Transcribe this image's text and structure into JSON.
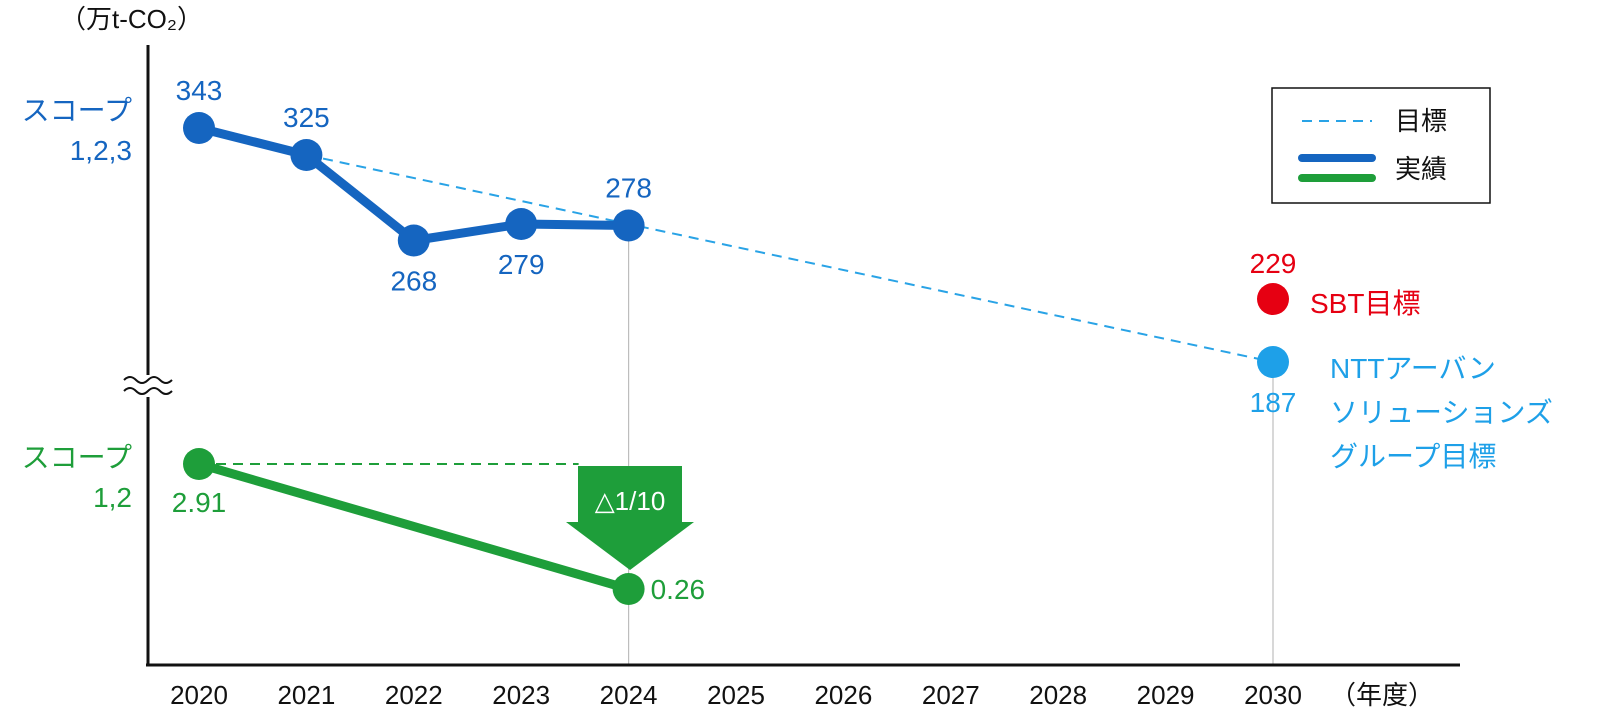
{
  "chart_data": {
    "type": "line",
    "unit_label": "（万t-CO₂）",
    "x_axis_unit": "（年度）",
    "categories": [
      "2020",
      "2021",
      "2022",
      "2023",
      "2024",
      "2025",
      "2026",
      "2027",
      "2028",
      "2029",
      "2030"
    ],
    "scope123": {
      "label_line1": "スコープ",
      "label_line2": "1,2,3",
      "actual": [
        {
          "x": "2020",
          "y": 343,
          "label": "343"
        },
        {
          "x": "2021",
          "y": 325,
          "label": "325"
        },
        {
          "x": "2022",
          "y": 268,
          "label": "268"
        },
        {
          "x": "2023",
          "y": 279,
          "label": "279"
        },
        {
          "x": "2024",
          "y": 278,
          "label": "278"
        }
      ],
      "target_line": [
        {
          "x": "2021",
          "y": 325
        },
        {
          "x": "2030",
          "y": 187
        }
      ]
    },
    "scope12": {
      "label_line1": "スコープ",
      "label_line2": "1,2",
      "actual": [
        {
          "x": "2020",
          "y": 2.91,
          "label": "2.91"
        },
        {
          "x": "2024",
          "y": 0.26,
          "label": "0.26"
        }
      ],
      "baseline_dashed": {
        "from": "2020",
        "to": "2024",
        "y": 2.91
      },
      "reduction_label": "△1/10"
    },
    "targets_2030": [
      {
        "name": "SBT目標",
        "value": 229,
        "label": "229"
      },
      {
        "name_lines": [
          "NTTアーバン",
          "ソリューションズ",
          "グループ目標"
        ],
        "value": 187,
        "label": "187"
      }
    ],
    "legend": {
      "placement": "top-right",
      "items": [
        {
          "label": "目標",
          "style": "dashed"
        },
        {
          "label": "実績",
          "style": "solid"
        }
      ]
    },
    "axis_break": "≈"
  },
  "colors": {
    "scope123": "#1565c0",
    "scope12": "#1e9e3a",
    "target_dash": "#29a3e6",
    "sbt": "#e60012",
    "group_target": "#1ea0e8",
    "axis": "#111111",
    "guide": "#bdbdbd"
  }
}
